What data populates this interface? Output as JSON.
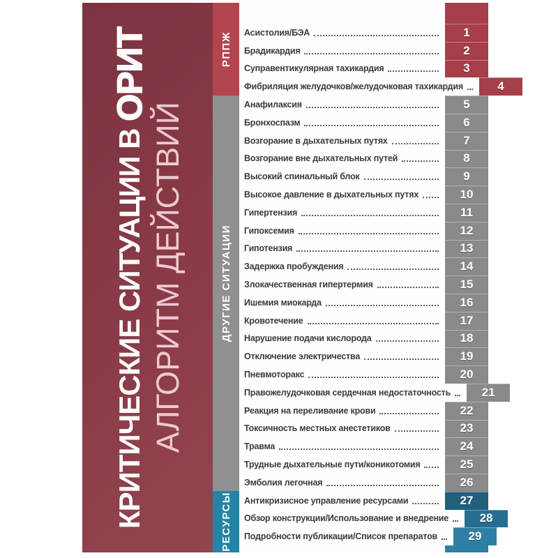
{
  "cover": {
    "title_line1_regular": "КРИТИЧЕСКИЕ СИТУАЦИИ В ",
    "title_line1_emphasis": "ОРИТ",
    "title_line2": "АЛГОРИТМ ДЕЙСТВИЙ"
  },
  "sections": [
    {
      "id": "rppzh",
      "label": "РППЖ"
    },
    {
      "id": "other",
      "label": "ДРУГИЕ СИТУАЦИИ"
    },
    {
      "id": "resources",
      "label": "РЕСУРСЫ"
    }
  ],
  "toc": {
    "items": [
      {
        "n": "1",
        "title": "Асистолия/БЭА",
        "section": "rppzh"
      },
      {
        "n": "2",
        "title": "Брадикардия",
        "section": "rppzh"
      },
      {
        "n": "3",
        "title": "Суправентикулярная тахикардия",
        "section": "rppzh"
      },
      {
        "n": "4",
        "title": "Фибриляция желудочков/желудочковая тахикардия",
        "section": "rppzh"
      },
      {
        "n": "5",
        "title": "Анафилаксия",
        "section": "other"
      },
      {
        "n": "6",
        "title": "Бронхоспазм",
        "section": "other"
      },
      {
        "n": "7",
        "title": "Возгорание в дыхательных путях",
        "section": "other"
      },
      {
        "n": "8",
        "title": "Возгорание вне дыхательных путей",
        "section": "other"
      },
      {
        "n": "9",
        "title": "Высокий спинальный блок",
        "section": "other"
      },
      {
        "n": "10",
        "title": "Высокое давление в дыхательных путях",
        "section": "other"
      },
      {
        "n": "11",
        "title": "Гипертензия",
        "section": "other"
      },
      {
        "n": "12",
        "title": "Гипоксемия",
        "section": "other"
      },
      {
        "n": "13",
        "title": "Гипотензия",
        "section": "other"
      },
      {
        "n": "14",
        "title": "Задержка пробуждения",
        "section": "other"
      },
      {
        "n": "15",
        "title": "Злокачественная гипертермия",
        "section": "other"
      },
      {
        "n": "16",
        "title": "Ишемия миокарда",
        "section": "other"
      },
      {
        "n": "17",
        "title": "Кровотечение",
        "section": "other"
      },
      {
        "n": "18",
        "title": "Нарушение подачи кислорода",
        "section": "other"
      },
      {
        "n": "19",
        "title": "Отключение электричества",
        "section": "other"
      },
      {
        "n": "20",
        "title": "Пневмоторакс",
        "section": "other"
      },
      {
        "n": "21",
        "title": "Правожелудочковая сердечная недостаточность",
        "section": "other"
      },
      {
        "n": "22",
        "title": "Реакция на переливание крови",
        "section": "other"
      },
      {
        "n": "23",
        "title": "Токсичность местных анестетиков",
        "section": "other"
      },
      {
        "n": "24",
        "title": "Травма",
        "section": "other"
      },
      {
        "n": "25",
        "title": "Трудные дыхательные пути/коникотомия",
        "section": "other"
      },
      {
        "n": "26",
        "title": "Эмболия легочная",
        "section": "other"
      },
      {
        "n": "27",
        "title": "Антикризисное управление ресурсами",
        "section": "resources",
        "tab_color": "#215f7d"
      },
      {
        "n": "28",
        "title": "Обзор конструкции/Использование и внедрение",
        "section": "resources",
        "tab_color": "#266e90"
      },
      {
        "n": "29",
        "title": "Подробности публикации/Список препаратов",
        "section": "resources",
        "tab_color": "#2d80a3"
      }
    ]
  },
  "colors": {
    "maroon": "#8a3b47",
    "maroon-dark": "#7c3340",
    "maroon-light": "#93454f",
    "pink": "#eec9d0",
    "red-strip": "#b2454e",
    "red-tab": "#a63f49",
    "gray-strip": "#909090",
    "gray-tab": "#8a8a8a",
    "teal-strip": "#2583a6",
    "text": "#3b3b3b"
  }
}
